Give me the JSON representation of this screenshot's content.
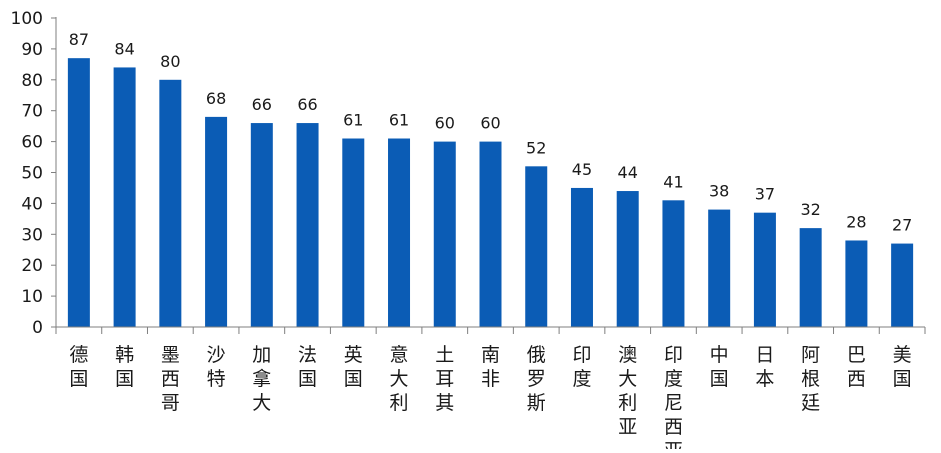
{
  "chart_data": {
    "type": "bar",
    "categories": [
      "德国",
      "韩国",
      "墨西哥",
      "沙特",
      "加拿大",
      "法国",
      "英国",
      "意大利",
      "土耳其",
      "南非",
      "俄罗斯",
      "印度",
      "澳大利亚",
      "印度尼西亚",
      "中国",
      "日本",
      "阿根廷",
      "巴西",
      "美国"
    ],
    "values": [
      87,
      84,
      80,
      68,
      66,
      66,
      61,
      61,
      60,
      60,
      52,
      45,
      44,
      41,
      38,
      37,
      32,
      28,
      27
    ],
    "data_labels": [
      "87",
      "84",
      "80",
      "68",
      "66",
      "66",
      "61",
      "61",
      "60",
      "60",
      "52",
      "45",
      "44",
      "41",
      "38",
      "37",
      "32",
      "28",
      "27"
    ],
    "yticks": [
      0,
      10,
      20,
      30,
      40,
      50,
      60,
      70,
      80,
      90,
      100
    ],
    "ylim": [
      0,
      100
    ],
    "title": "",
    "xlabel": "",
    "ylabel": "",
    "grid": false,
    "colors": {
      "bar": "#0b5cb5",
      "axis": "#7f7f7f",
      "text": "#1a1a1a"
    }
  }
}
